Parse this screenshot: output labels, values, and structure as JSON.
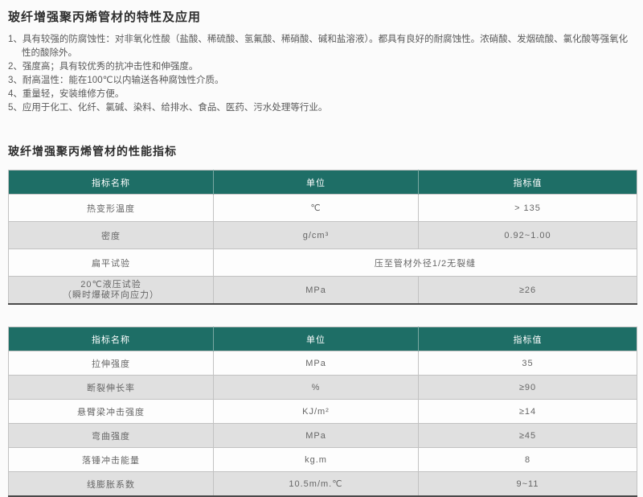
{
  "doc": {
    "section1": {
      "title": "玻纤增强聚丙烯管材的特性及应用",
      "items": [
        {
          "num": "1、",
          "text": "具有较强的防腐蚀性：对非氧化性酸（盐酸、稀硫酸、氢氟酸、稀硝酸、碱和盐溶液）。都具有良好的耐腐蚀性。浓硝酸、发烟硫酸、氯化酸等强氧化性的酸除外。"
        },
        {
          "num": "2、",
          "text": "强度高；具有较优秀的抗冲击性和伸强度。"
        },
        {
          "num": "3、",
          "text": "耐高温性：能在100℃以内输送各种腐蚀性介质。"
        },
        {
          "num": "4、",
          "text": "重量轻，安装维修方便。"
        },
        {
          "num": "5、",
          "text": "应用于化工、化纤、氯碱、染料、给排水、食品、医药、污水处理等行业。"
        }
      ]
    },
    "section2": {
      "title": "玻纤增强聚丙烯管材的性能指标"
    },
    "table1": {
      "headers": {
        "name": "指标名称",
        "unit": "单位",
        "value": "指标值"
      },
      "rows": [
        {
          "name": "热变形温度",
          "unit": "℃",
          "value": "> 135"
        },
        {
          "name": "密度",
          "unit": "g/cm³",
          "value": "0.92~1.00"
        },
        {
          "name": "扁平试验",
          "span_value": "压至管材外径1/2无裂缝"
        },
        {
          "name_line1": "20℃液压试验",
          "name_line2": "（瞬时爆破环向应力）",
          "unit": "MPa",
          "value": "≥26"
        }
      ]
    },
    "table2": {
      "headers": {
        "name": "指标名称",
        "unit": "单位",
        "value": "指标值"
      },
      "rows": [
        {
          "name": "拉伸强度",
          "unit": "MPa",
          "value": "35"
        },
        {
          "name": "断裂伸长率",
          "unit": "%",
          "value": "≥90"
        },
        {
          "name": "悬臂梁冲击强度",
          "unit": "KJ/m²",
          "value": "≥14"
        },
        {
          "name": "弯曲强度",
          "unit": "MPa",
          "value": "≥45"
        },
        {
          "name": "落锤冲击能量",
          "unit": "kg.m",
          "value": "8"
        },
        {
          "name": "线膨胀系数",
          "unit": "10.5m/m.℃",
          "value": "9~11"
        }
      ]
    },
    "colors": {
      "table_header_bg": "#1e6e66",
      "alt_row_bg": "#e0e0e0",
      "table_bottom_border": "#4a4a4a"
    }
  }
}
